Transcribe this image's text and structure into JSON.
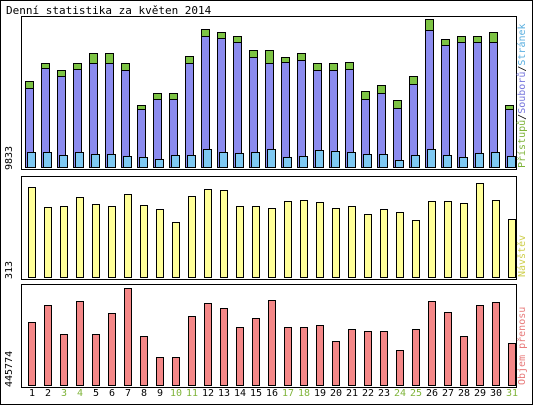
{
  "title": "Denní statistika za květen 2014",
  "colors": {
    "pristupy": "#7dc344",
    "soubory": "#8b8bef",
    "stranky": "#7ec8f2",
    "navstevy": "#ffff99",
    "objem": "#f48787",
    "weekend": "#7fb43a",
    "weekday": "#000000"
  },
  "legends": {
    "top": [
      {
        "label": "Přístupů",
        "color": "#7fb43a"
      },
      {
        "label": "/",
        "color": "#000000"
      },
      {
        "label": "Souborů",
        "color": "#7777dd"
      },
      {
        "label": "/",
        "color": "#000000"
      },
      {
        "label": "Stránek",
        "color": "#5cb0e0"
      }
    ],
    "middle": {
      "label": "Návštěv",
      "color": "#cfcf4e"
    },
    "bottom": {
      "label": "Objem přenosu",
      "color": "#e87b7b"
    }
  },
  "chart_data": [
    {
      "type": "bar",
      "title": "Denní statistika za květen 2014",
      "ylabel": "9833",
      "ylim": [
        0,
        9833
      ],
      "categories": [
        "1",
        "2",
        "3",
        "4",
        "5",
        "6",
        "7",
        "8",
        "9",
        "10",
        "11",
        "12",
        "13",
        "14",
        "15",
        "16",
        "17",
        "18",
        "19",
        "20",
        "21",
        "22",
        "23",
        "24",
        "25",
        "26",
        "27",
        "28",
        "29",
        "30",
        "31"
      ],
      "weekend_days": [
        3,
        4,
        10,
        11,
        17,
        18,
        24,
        25,
        31
      ],
      "series": [
        {
          "name": "Přístupů",
          "values": [
            5800,
            7000,
            6500,
            7000,
            7700,
            7700,
            7000,
            4200,
            5000,
            5000,
            7500,
            9300,
            9100,
            8800,
            7900,
            7900,
            7400,
            7700,
            7000,
            7000,
            7100,
            5100,
            5500,
            4500,
            6100,
            10000,
            8600,
            8800,
            8800,
            9100,
            4200
          ]
        },
        {
          "name": "Souborů",
          "values": [
            5300,
            6700,
            6100,
            6600,
            7000,
            7000,
            6500,
            3900,
            4600,
            4600,
            7000,
            8800,
            8700,
            8400,
            7400,
            7000,
            7100,
            7200,
            6500,
            6500,
            6600,
            4600,
            5000,
            4000,
            5600,
            9200,
            8200,
            8400,
            8400,
            8400,
            3900
          ]
        },
        {
          "name": "Stránek",
          "values": [
            1000,
            1000,
            800,
            1000,
            850,
            850,
            750,
            650,
            550,
            800,
            800,
            1200,
            1000,
            950,
            1000,
            1200,
            650,
            750,
            1150,
            1100,
            1000,
            850,
            850,
            500,
            800,
            1200,
            800,
            650,
            950,
            1000,
            750
          ]
        }
      ]
    },
    {
      "type": "bar",
      "ylabel": "313",
      "ylim": [
        0,
        313
      ],
      "categories": [
        "1",
        "2",
        "3",
        "4",
        "5",
        "6",
        "7",
        "8",
        "9",
        "10",
        "11",
        "12",
        "13",
        "14",
        "15",
        "16",
        "17",
        "18",
        "19",
        "20",
        "21",
        "22",
        "23",
        "24",
        "25",
        "26",
        "27",
        "28",
        "29",
        "30",
        "31"
      ],
      "series": [
        {
          "name": "Návštěv",
          "values": [
            292,
            225,
            229,
            257,
            235,
            229,
            267,
            233,
            218,
            179,
            262,
            283,
            282,
            229,
            229,
            223,
            245,
            249,
            242,
            223,
            228,
            204,
            220,
            210,
            183,
            246,
            246,
            240,
            302,
            248,
            188
          ]
        }
      ]
    },
    {
      "type": "bar",
      "ylabel": "445774",
      "ylim": [
        0,
        445774
      ],
      "categories": [
        "1",
        "2",
        "3",
        "4",
        "5",
        "6",
        "7",
        "8",
        "9",
        "10",
        "11",
        "12",
        "13",
        "14",
        "15",
        "16",
        "17",
        "18",
        "19",
        "20",
        "21",
        "22",
        "23",
        "24",
        "25",
        "26",
        "27",
        "28",
        "29",
        "30",
        "31"
      ],
      "series": [
        {
          "name": "Objem přenosu",
          "values": [
            290000,
            366000,
            234000,
            387000,
            234000,
            332000,
            447000,
            226000,
            128000,
            128000,
            316000,
            378000,
            355000,
            268000,
            310000,
            390000,
            266000,
            268000,
            276000,
            201000,
            258000,
            248000,
            248000,
            161000,
            258000,
            388000,
            334000,
            224000,
            366000,
            381000,
            194000
          ]
        }
      ]
    }
  ]
}
